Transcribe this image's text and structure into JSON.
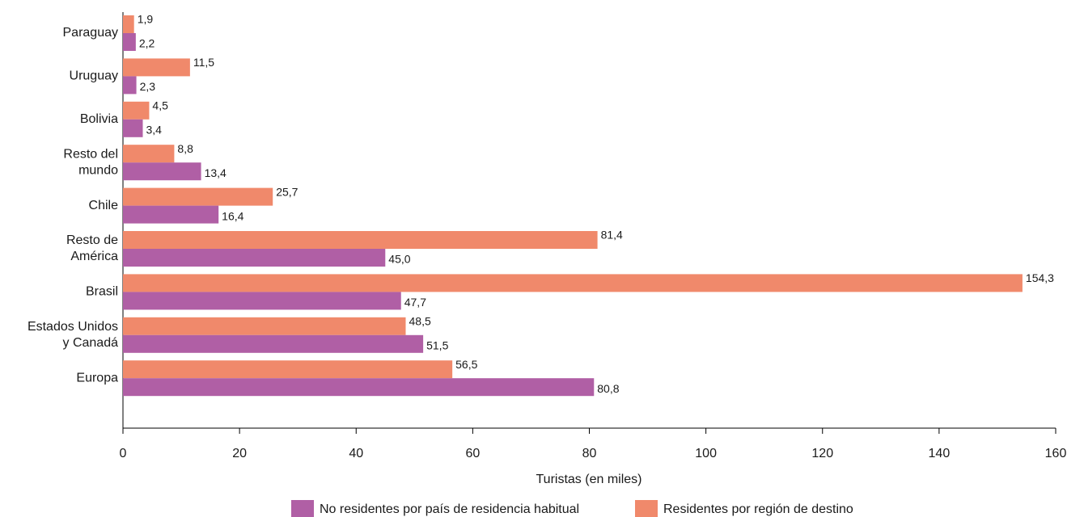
{
  "chart_data": {
    "type": "hbar",
    "categories": [
      [
        "Paraguay"
      ],
      [
        "Uruguay"
      ],
      [
        "Bolivia"
      ],
      [
        "Resto del",
        "mundo"
      ],
      [
        "Chile"
      ],
      [
        "Resto de",
        "América"
      ],
      [
        "Brasil"
      ],
      [
        "Estados Unidos",
        "y Canadá"
      ],
      [
        "Europa"
      ]
    ],
    "series": [
      {
        "name": "No residentes por país de residencia habitual",
        "color": "#b05fa5",
        "values": [
          2.2,
          2.3,
          3.4,
          13.4,
          16.4,
          45.0,
          47.7,
          51.5,
          80.8
        ],
        "value_labels": [
          "2,2",
          "2,3",
          "3,4",
          "13,4",
          "16,4",
          "45,0",
          "47,7",
          "51,5",
          "80,8"
        ]
      },
      {
        "name": "Residentes por región de destino",
        "color": "#f0896b",
        "values": [
          1.9,
          11.5,
          4.5,
          8.8,
          25.7,
          81.4,
          154.3,
          48.5,
          56.5
        ],
        "value_labels": [
          "1,9",
          "11,5",
          "4,5",
          "8,8",
          "25,7",
          "81,4",
          "154,3",
          "48,5",
          "56,5"
        ]
      }
    ],
    "x_label": "Turistas (en miles)",
    "xlim": [
      0,
      160
    ],
    "xticks": [
      0,
      20,
      40,
      60,
      80,
      100,
      120,
      140,
      160
    ]
  }
}
